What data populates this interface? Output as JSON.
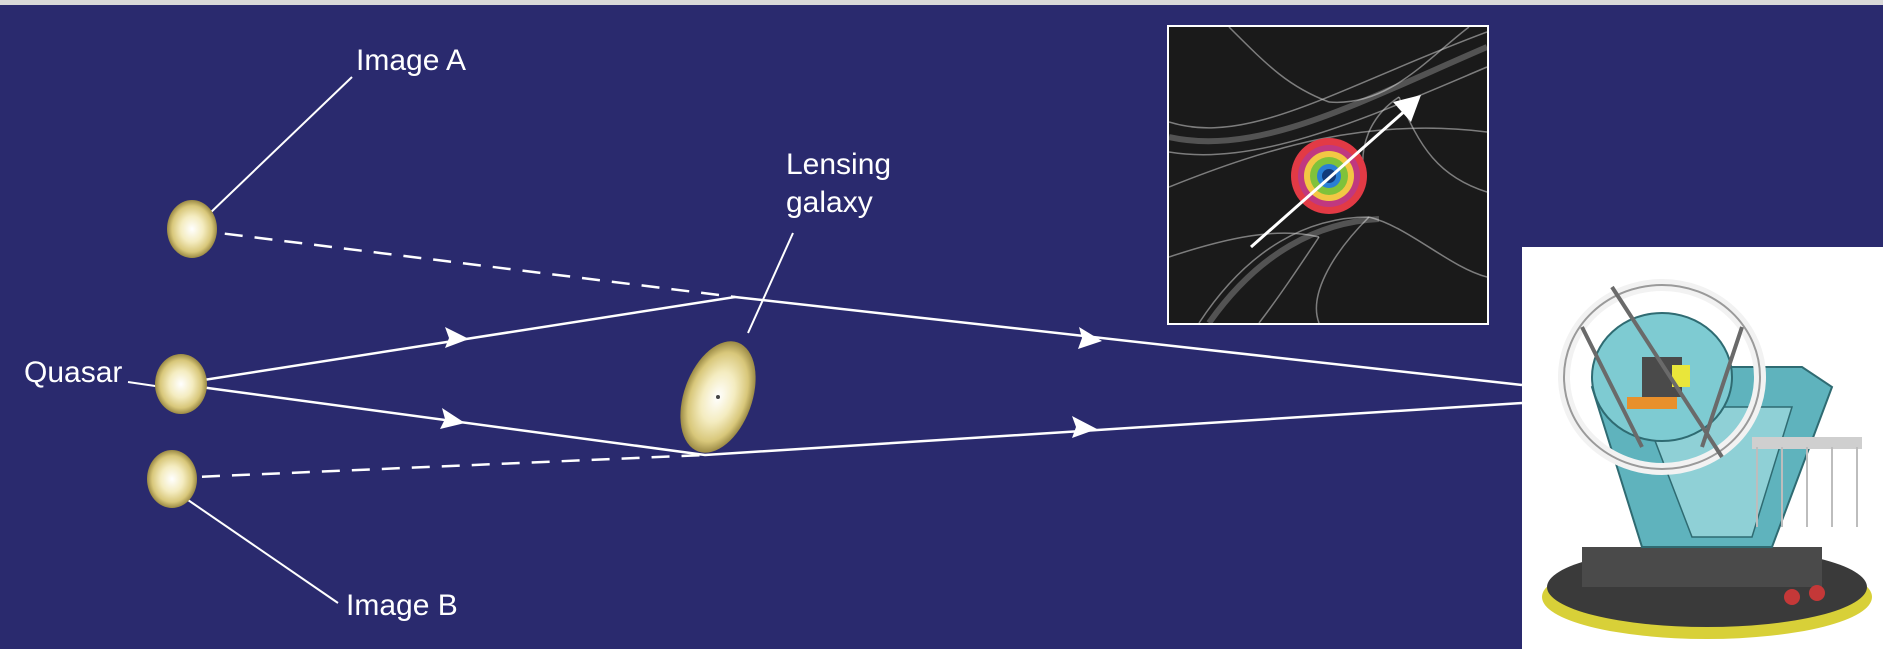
{
  "labels": {
    "image_a": "Image A",
    "image_b": "Image B",
    "quasar": "Quasar",
    "lensing_galaxy_line1": "Lensing",
    "lensing_galaxy_line2": "galaxy"
  },
  "icons": {
    "caustic_map": "caustic-network-icon",
    "telescope": "telescope-icon"
  },
  "colors": {
    "background": "#2a2a6e",
    "light_path": "#ffffff",
    "quasar_glow": "#efe6b2",
    "ring_outer": "#e23a45",
    "ring_inner": "#7fc23a",
    "core": "#2a7fd4"
  }
}
